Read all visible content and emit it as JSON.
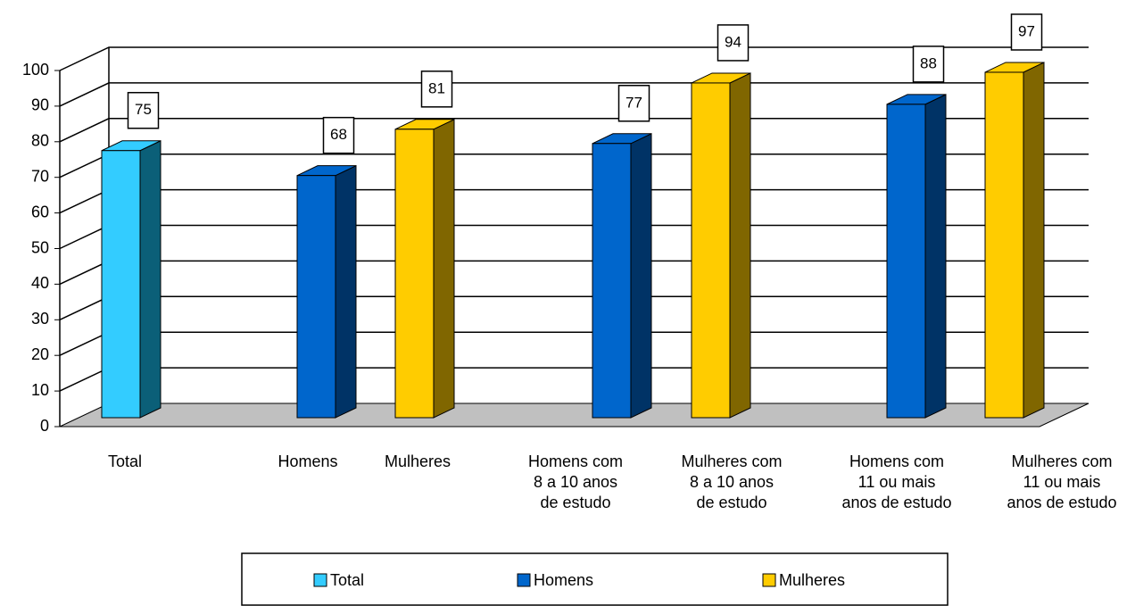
{
  "chart_data": {
    "type": "bar3d",
    "categories": [
      [
        "Total"
      ],
      [
        "Homens"
      ],
      [
        "Mulheres"
      ],
      [
        "Homens com",
        "8 a 10 anos",
        "de estudo"
      ],
      [
        "Mulheres com",
        "8 a 10 anos",
        "de estudo"
      ],
      [
        "Homens com",
        "11 ou mais",
        "anos de estudo"
      ],
      [
        "Mulheres com",
        "11 ou mais",
        "anos de estudo"
      ]
    ],
    "series": [
      {
        "name": "Total",
        "color": "#33ccff",
        "side": "#0b5f78",
        "values": [
          75,
          null,
          null,
          null,
          null,
          null,
          null
        ]
      },
      {
        "name": "Homens",
        "color": "#0066cc",
        "side": "#003366",
        "values": [
          null,
          68,
          null,
          77,
          null,
          88,
          null
        ]
      },
      {
        "name": "Mulheres",
        "color": "#ffcc00",
        "side": "#806600",
        "values": [
          null,
          null,
          81,
          null,
          94,
          null,
          97
        ]
      }
    ],
    "ylim": [
      0,
      100
    ],
    "yticks": [
      0,
      10,
      20,
      30,
      40,
      50,
      60,
      70,
      80,
      90,
      100
    ],
    "grid": true,
    "legend": "bottom"
  }
}
